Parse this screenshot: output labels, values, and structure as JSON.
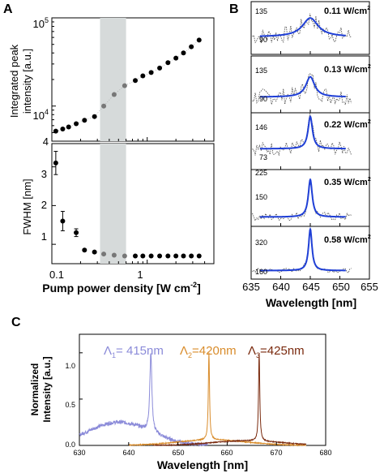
{
  "panels": {
    "A": {
      "letter": "A",
      "xlabel": "Pump power density [W cm",
      "xlabel_sup": "-2",
      "xlabel_end": "]",
      "x_ticks": [
        "0.1",
        "1"
      ],
      "top_ylabel_line1": "Integrated peak",
      "top_ylabel_line2": "intensity [a.u.]",
      "top_y_ticks": [
        {
          "base": "10",
          "exp": "5"
        },
        {
          "base": "10",
          "exp": "4"
        },
        {
          "base": "4",
          "exp": ""
        }
      ],
      "bottom_ylabel": "FWHM [nm]",
      "bottom_y_ticks": [
        "3",
        "2",
        "1"
      ]
    },
    "B": {
      "letter": "B",
      "xlabel": "Wavelength [nm]",
      "x_ticks": [
        "635",
        "640",
        "645",
        "650",
        "655"
      ],
      "subplots": [
        {
          "label": "0.11 W/cm",
          "sup": "2",
          "y_ticks": [
            "135",
            "90"
          ]
        },
        {
          "label": "0.13 W/cm",
          "sup": "2",
          "y_ticks": [
            "135",
            "90"
          ]
        },
        {
          "label": "0.22 W/cm",
          "sup": "2",
          "y_ticks": [
            "146",
            "73"
          ]
        },
        {
          "label": "0.35 W/cm",
          "sup": "2",
          "y_ticks": [
            "225",
            "150"
          ]
        },
        {
          "label": "0.58 W/cm",
          "sup": "2",
          "y_ticks": [
            "320",
            "160"
          ]
        }
      ]
    },
    "C": {
      "letter": "C",
      "ylabel_line1": "Normalized",
      "ylabel_line2": "Intensity [a.u.]",
      "xlabel": "Wavelength [nm]",
      "x_ticks": [
        "630",
        "640",
        "650",
        "660",
        "670",
        "680"
      ],
      "y_ticks": [
        "1.0",
        "0.5",
        "0.0"
      ],
      "peak_labels": [
        {
          "prefix": "Λ",
          "sub": "1",
          "suffix": "= 415nm",
          "color": "#8b8bd9"
        },
        {
          "prefix": "Λ",
          "sub": "2",
          "suffix": "=420nm",
          "color": "#d98c2b"
        },
        {
          "prefix": "Λ",
          "sub": "3",
          "suffix": "=425nm",
          "color": "#7a2a0e"
        }
      ]
    }
  },
  "chart_data": [
    {
      "panel": "A-top",
      "type": "scatter",
      "x_scale": "log",
      "y_scale": "log",
      "xlim": [
        0.1,
        5
      ],
      "ylim": [
        4000,
        100000
      ],
      "shaded_x_range": [
        0.32,
        0.6
      ],
      "x": [
        0.11,
        0.13,
        0.15,
        0.18,
        0.22,
        0.28,
        0.35,
        0.45,
        0.58,
        0.75,
        0.9,
        1.1,
        1.35,
        1.65,
        2.0,
        2.4,
        2.9,
        3.5
      ],
      "y": [
        5200,
        5500,
        5800,
        6300,
        6900,
        7600,
        10000,
        13500,
        17000,
        19500,
        22000,
        24000,
        27000,
        31000,
        35000,
        40000,
        47000,
        56000
      ],
      "colors_by_region": {
        "below": "#000000",
        "inside": "#777777",
        "above": "#000000"
      }
    },
    {
      "panel": "A-bottom",
      "type": "scatter",
      "x_scale": "log",
      "xlim": [
        0.1,
        5
      ],
      "ylim": [
        0.5,
        3.6
      ],
      "x": [
        0.11,
        0.13,
        0.18,
        0.22,
        0.28,
        0.35,
        0.45,
        0.58,
        0.75,
        0.9,
        1.1,
        1.35,
        1.65,
        2.0,
        2.4,
        2.9,
        3.5
      ],
      "y": [
        3.1,
        1.6,
        1.3,
        0.85,
        0.8,
        0.75,
        0.72,
        0.7,
        0.7,
        0.7,
        0.7,
        0.7,
        0.7,
        0.7,
        0.7,
        0.7,
        0.7
      ],
      "y_err": [
        0.3,
        0.25,
        0.1,
        0,
        0,
        0,
        0,
        0,
        0,
        0,
        0,
        0,
        0,
        0,
        0,
        0,
        0
      ]
    },
    {
      "panel": "B",
      "type": "line",
      "xlim": [
        635,
        655
      ],
      "fit_x_range": [
        636.5,
        651
      ],
      "peak_x": 645,
      "series": [
        {
          "ylim": [
            70,
            160
          ],
          "baseline": 100,
          "amplitude": 32,
          "width": 1.6,
          "noise": 14
        },
        {
          "ylim": [
            70,
            160
          ],
          "baseline": 95,
          "amplitude": 32,
          "width": 0.9,
          "noise": 13
        },
        {
          "ylim": [
            40,
            190
          ],
          "baseline": 95,
          "amplitude": 85,
          "width": 0.45,
          "noise": 18
        },
        {
          "ylim": [
            90,
            260
          ],
          "baseline": 118,
          "amplitude": 112,
          "width": 0.4,
          "noise": 12
        },
        {
          "ylim": [
            120,
            400
          ],
          "baseline": 165,
          "amplitude": 220,
          "width": 0.35,
          "noise": 12
        }
      ]
    },
    {
      "panel": "C",
      "type": "line",
      "xlim": [
        630,
        680
      ],
      "ylim": [
        0,
        1.2
      ],
      "series": [
        {
          "color": "#8b8bd9",
          "x_range": [
            630,
            656
          ],
          "peak_x": 644.5,
          "peak_y": 1.0,
          "width": 0.25,
          "broad_center": 638,
          "broad_height": 0.25,
          "broad_width": 9
        },
        {
          "color": "#d98c2b",
          "x_range": [
            640,
            676
          ],
          "peak_x": 656.3,
          "peak_y": 1.0,
          "width": 0.15,
          "broad_center": 657,
          "broad_height": 0.06,
          "broad_width": 10
        },
        {
          "color": "#7a2a0e",
          "x_range": [
            645,
            676
          ],
          "peak_x": 666.5,
          "peak_y": 1.0,
          "width": 0.15,
          "broad_center": 664,
          "broad_height": 0.05,
          "broad_width": 10
        }
      ]
    }
  ]
}
